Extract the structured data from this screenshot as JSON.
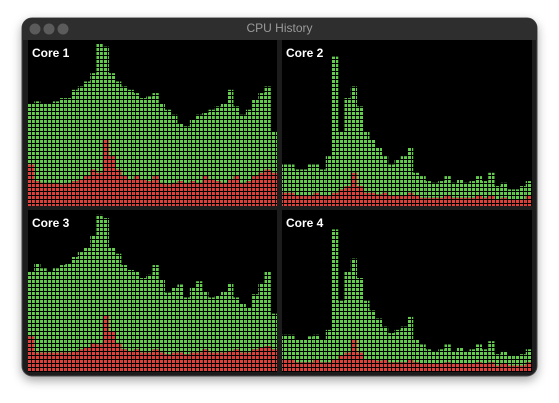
{
  "window": {
    "title": "CPU History"
  },
  "chart_data": [
    {
      "type": "bar",
      "stacked": true,
      "title": "Core 1",
      "ylim": [
        0,
        100
      ],
      "series": [
        {
          "color": "#e0403a",
          "values": [
            25,
            15,
            14,
            14,
            14,
            13,
            14,
            15,
            16,
            18,
            22,
            20,
            40,
            30,
            22,
            18,
            16,
            18,
            16,
            15,
            18,
            14,
            13,
            14,
            15,
            14,
            15,
            14,
            18,
            16,
            15,
            14,
            16,
            18,
            14,
            15,
            18,
            20,
            22,
            20
          ]
        },
        {
          "color": "#62cc4c",
          "values": [
            37,
            48,
            48,
            48,
            49,
            52,
            51,
            55,
            56,
            57,
            58,
            78,
            56,
            50,
            53,
            54,
            54,
            50,
            49,
            51,
            50,
            48,
            45,
            41,
            35,
            34,
            37,
            41,
            38,
            42,
            45,
            48,
            54,
            42,
            41,
            43,
            46,
            48,
            50,
            25
          ]
        }
      ]
    },
    {
      "type": "bar",
      "stacked": true,
      "title": "Core 2",
      "ylim": [
        0,
        100
      ],
      "series": [
        {
          "color": "#e0403a",
          "values": [
            8,
            8,
            6,
            6,
            6,
            8,
            6,
            6,
            8,
            10,
            12,
            20,
            12,
            8,
            8,
            7,
            8,
            6,
            6,
            6,
            8,
            6,
            5,
            5,
            5,
            5,
            6,
            5,
            5,
            5,
            5,
            6,
            5,
            6,
            4,
            5,
            4,
            4,
            4,
            6
          ]
        },
        {
          "color": "#62cc4c",
          "values": [
            17,
            17,
            16,
            16,
            19,
            17,
            16,
            24,
            82,
            35,
            53,
            52,
            48,
            37,
            32,
            28,
            22,
            19,
            22,
            24,
            27,
            14,
            13,
            10,
            9,
            10,
            12,
            9,
            11,
            9,
            10,
            12,
            10,
            14,
            8,
            9,
            6,
            6,
            8,
            9
          ]
        }
      ]
    },
    {
      "type": "bar",
      "stacked": true,
      "title": "Core 3",
      "ylim": [
        0,
        100
      ],
      "series": [
        {
          "color": "#e0403a",
          "values": [
            22,
            12,
            12,
            12,
            12,
            12,
            12,
            13,
            14,
            15,
            18,
            17,
            35,
            25,
            18,
            14,
            13,
            14,
            12,
            12,
            14,
            12,
            11,
            12,
            12,
            11,
            12,
            12,
            14,
            12,
            12,
            12,
            13,
            14,
            12,
            12,
            14,
            15,
            16,
            14
          ]
        },
        {
          "color": "#62cc4c",
          "values": [
            40,
            55,
            52,
            50,
            52,
            54,
            55,
            58,
            60,
            62,
            66,
            80,
            60,
            52,
            55,
            52,
            50,
            48,
            46,
            48,
            52,
            45,
            38,
            40,
            42,
            35,
            40,
            44,
            36,
            34,
            35,
            38,
            42,
            32,
            30,
            28,
            34,
            40,
            46,
            22
          ]
        }
      ]
    },
    {
      "type": "bar",
      "stacked": true,
      "title": "Core 4",
      "ylim": [
        0,
        100
      ],
      "series": [
        {
          "color": "#e0403a",
          "values": [
            8,
            8,
            6,
            6,
            6,
            8,
            6,
            6,
            8,
            10,
            12,
            20,
            12,
            8,
            8,
            7,
            8,
            6,
            6,
            6,
            8,
            6,
            5,
            5,
            5,
            5,
            6,
            5,
            5,
            5,
            5,
            6,
            5,
            6,
            4,
            5,
            4,
            4,
            4,
            6
          ]
        },
        {
          "color": "#62cc4c",
          "values": [
            15,
            15,
            14,
            14,
            16,
            15,
            14,
            20,
            80,
            34,
            50,
            50,
            46,
            36,
            30,
            26,
            20,
            18,
            20,
            22,
            26,
            14,
            12,
            9,
            8,
            9,
            11,
            8,
            10,
            8,
            9,
            11,
            9,
            13,
            7,
            8,
            6,
            6,
            7,
            8
          ]
        }
      ]
    }
  ]
}
